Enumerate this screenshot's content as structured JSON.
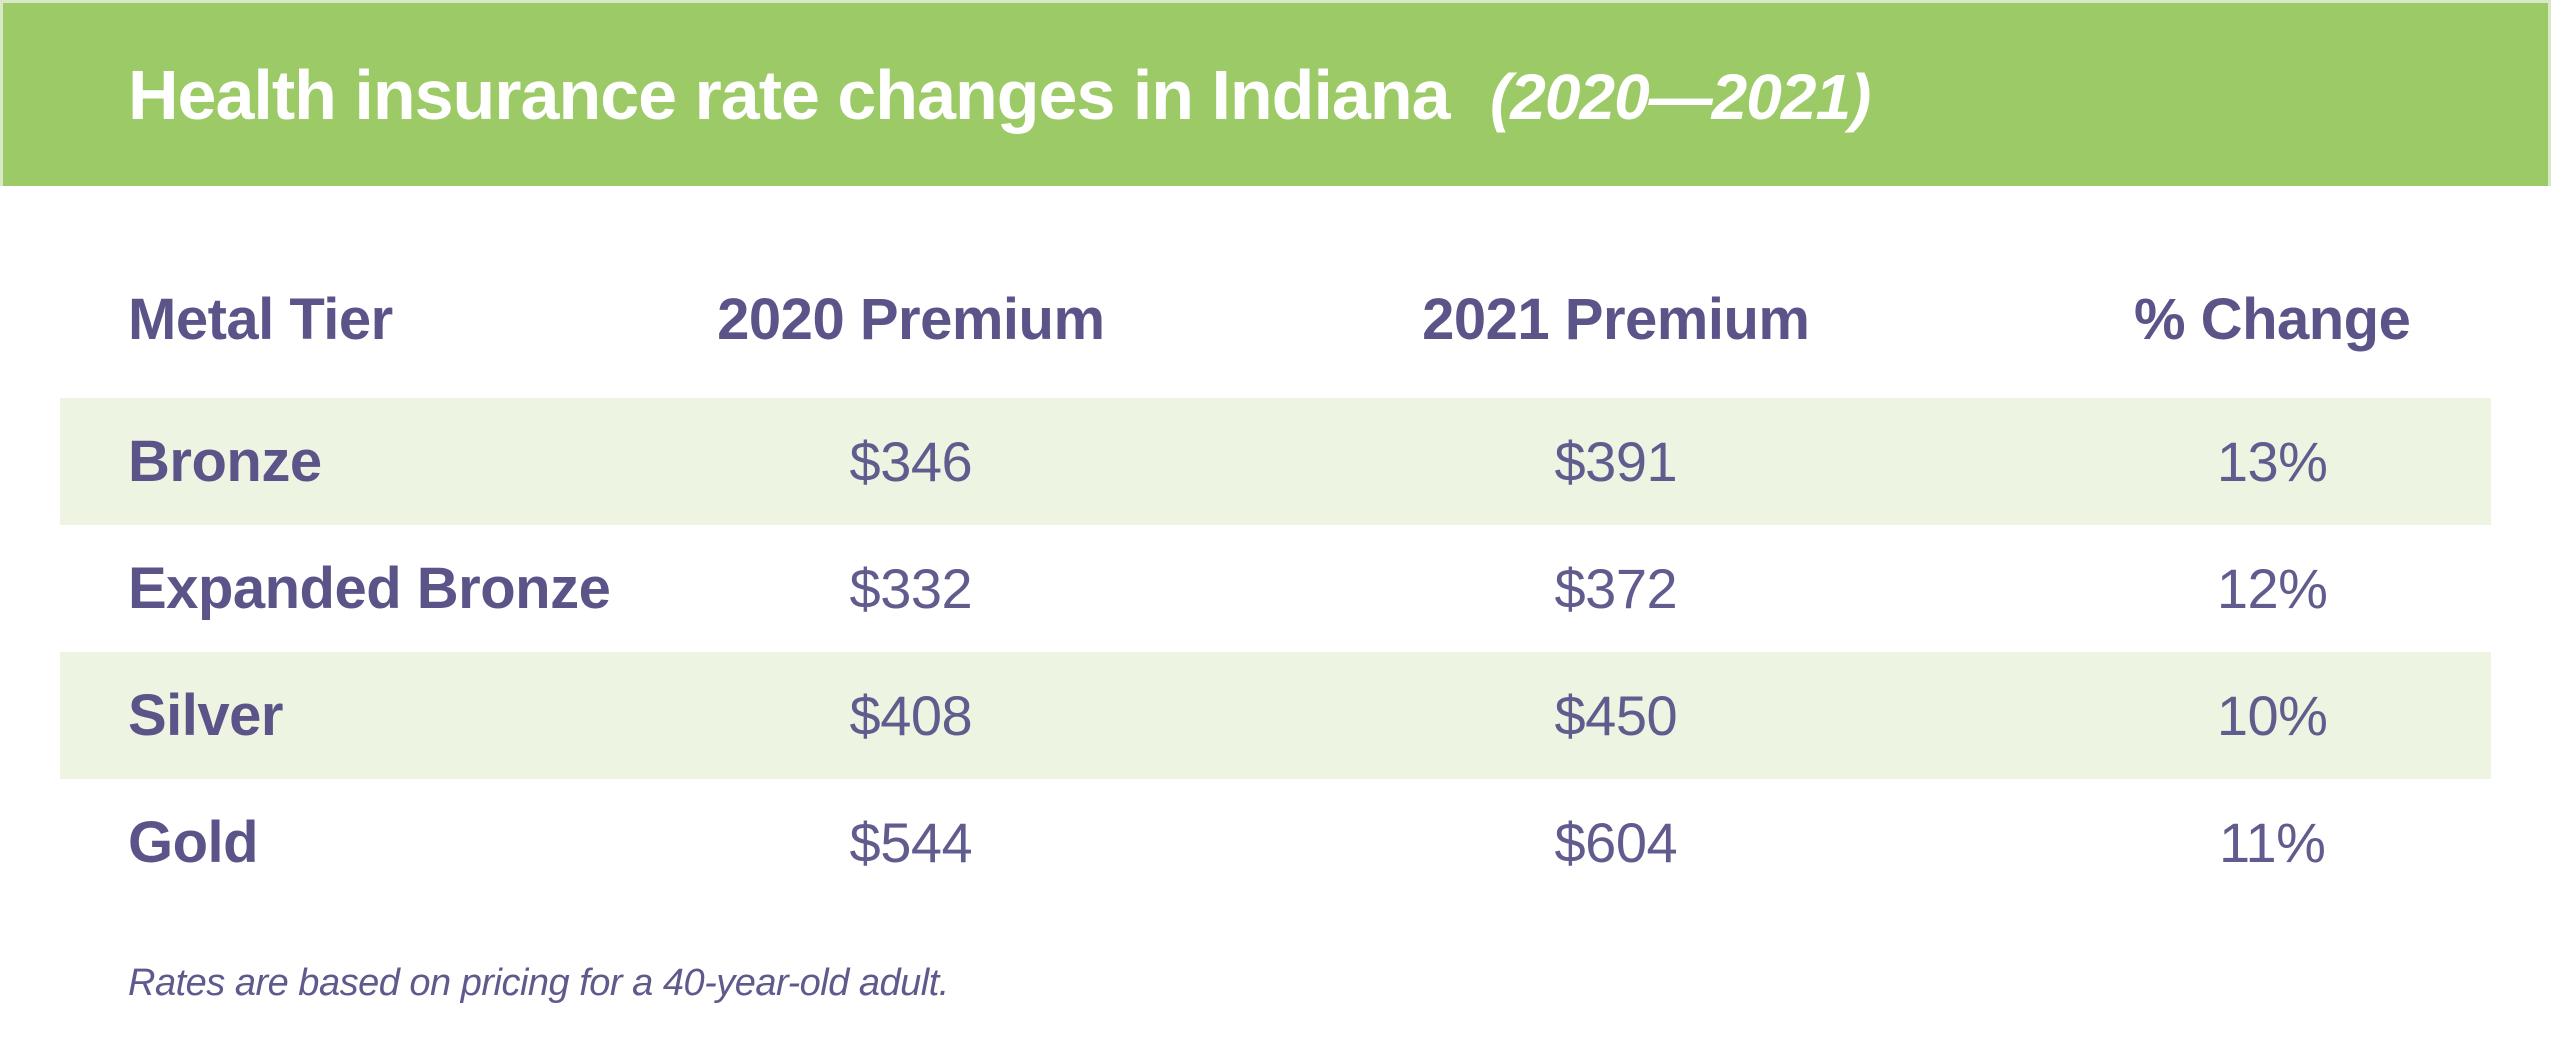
{
  "title": {
    "main": "Health insurance rate changes in Indiana",
    "period": "(2020—2021)"
  },
  "table": {
    "columns": [
      "Metal Tier",
      "2020 Premium",
      "2021 Premium",
      "% Change"
    ],
    "rows": [
      {
        "tier": "Bronze",
        "premium_2020": "$346",
        "premium_2021": "$391",
        "pct_change": "13%"
      },
      {
        "tier": "Expanded Bronze",
        "premium_2020": "$332",
        "premium_2021": "$372",
        "pct_change": "12%"
      },
      {
        "tier": "Silver",
        "premium_2020": "$408",
        "premium_2021": "$450",
        "pct_change": "10%"
      },
      {
        "tier": "Gold",
        "premium_2020": "$544",
        "premium_2021": "$604",
        "pct_change": "11%"
      }
    ]
  },
  "footnote": "Rates are based on pricing for a 40-year-old adult.",
  "colors": {
    "banner_green": "#9cca66",
    "banner_edge": "#d9e9c7",
    "stripe_green": "#edf4e2",
    "heading_purple": "#5a5488",
    "value_purple": "#615c8e",
    "footnote_purple": "#5f5a8c",
    "title_white": "#ffffff"
  },
  "chart_data": {
    "type": "table",
    "title": "Health insurance rate changes in Indiana (2020—2021)",
    "columns": [
      "Metal Tier",
      "2020 Premium",
      "2021 Premium",
      "% Change"
    ],
    "categories": [
      "Bronze",
      "Expanded Bronze",
      "Silver",
      "Gold"
    ],
    "series": [
      {
        "name": "2020 Premium",
        "values": [
          346,
          332,
          408,
          544
        ]
      },
      {
        "name": "2021 Premium",
        "values": [
          391,
          372,
          450,
          604
        ]
      },
      {
        "name": "% Change",
        "values": [
          13,
          12,
          10,
          11
        ]
      }
    ],
    "footnote": "Rates are based on pricing for a 40-year-old adult.",
    "layout": {
      "striped_rows": [
        0,
        2
      ],
      "first_column_align": "left",
      "other_columns_align": "center"
    }
  }
}
